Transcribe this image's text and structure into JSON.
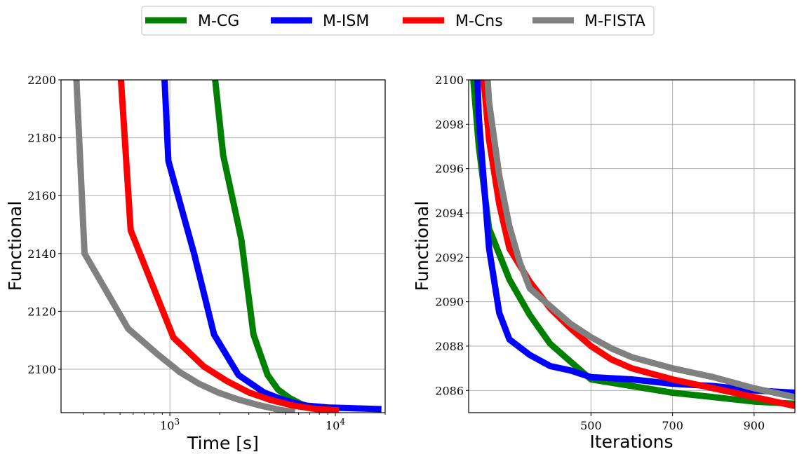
{
  "legend": {
    "placement": "top-center",
    "entries": [
      {
        "name": "M-CG",
        "color": "#008000"
      },
      {
        "name": "M-ISM",
        "color": "#0000ff"
      },
      {
        "name": "M-Cns",
        "color": "#ff0000"
      },
      {
        "name": "M-FISTA",
        "color": "#808080"
      }
    ]
  },
  "chart_data": [
    {
      "type": "line",
      "xlabel": "Time [s]",
      "ylabel": "Functional",
      "xscale": "log",
      "xlim": [
        220,
        20000
      ],
      "ylim": [
        2085,
        2200
      ],
      "xticks": [
        {
          "value": 1000,
          "label": "10^3"
        },
        {
          "value": 10000,
          "label": "10^4"
        }
      ],
      "yticks": [
        2100,
        2120,
        2140,
        2160,
        2180,
        2200
      ],
      "grid": true,
      "series": [
        {
          "name": "M-CG",
          "color": "#008000",
          "x": [
            1800,
            2100,
            2700,
            3200,
            3900,
            4500,
            5300,
            6200,
            7500,
            9000
          ],
          "y": [
            2210,
            2174,
            2145,
            2112,
            2098,
            2093,
            2090,
            2088,
            2086.5,
            2086
          ]
        },
        {
          "name": "M-ISM",
          "color": "#0000ff",
          "x": [
            920,
            980,
            1400,
            1850,
            2600,
            3700,
            4800,
            6500,
            9000,
            13000,
            19000
          ],
          "y": [
            2205,
            2172,
            2140,
            2112,
            2098,
            2092,
            2089.5,
            2087.5,
            2086.8,
            2086.5,
            2086.2
          ]
        },
        {
          "name": "M-Cns",
          "color": "#ff0000",
          "x": [
            500,
            580,
            1050,
            1600,
            2200,
            3000,
            4000,
            5500,
            7500,
            10500
          ],
          "y": [
            2205,
            2148,
            2111,
            2101,
            2096,
            2092,
            2089.5,
            2087.5,
            2086.3,
            2085.8
          ]
        },
        {
          "name": "M-FISTA",
          "color": "#808080",
          "x": [
            270,
            305,
            560,
            850,
            1150,
            1500,
            1950,
            2600,
            3500,
            4600,
            5700
          ],
          "y": [
            2205,
            2140,
            2114,
            2105,
            2099,
            2095,
            2092,
            2089.5,
            2087.5,
            2086,
            2085.2
          ]
        }
      ]
    },
    {
      "type": "line",
      "xlabel": "Iterations",
      "ylabel": "Functional",
      "xlim": [
        200,
        1000
      ],
      "ylim": [
        2085,
        2100
      ],
      "xticks": [
        500,
        700,
        900
      ],
      "yticks": [
        2086,
        2088,
        2090,
        2092,
        2094,
        2096,
        2098,
        2100
      ],
      "grid": true,
      "series": [
        {
          "name": "M-CG",
          "color": "#008000",
          "x": [
            207,
            225,
            250,
            300,
            350,
            400,
            450,
            500,
            600,
            700,
            800,
            900,
            1000
          ],
          "y": [
            2101,
            2097,
            2093.3,
            2091,
            2089.4,
            2088.1,
            2087.3,
            2086.5,
            2086.2,
            2085.9,
            2085.7,
            2085.5,
            2085.4
          ]
        },
        {
          "name": "M-ISM",
          "color": "#0000ff",
          "x": [
            220,
            225,
            250,
            275,
            300,
            350,
            400,
            450,
            500,
            600,
            700,
            800,
            900,
            1000
          ],
          "y": [
            2101,
            2098.3,
            2092.4,
            2089.5,
            2088.3,
            2087.6,
            2087.1,
            2086.9,
            2086.6,
            2086.5,
            2086.3,
            2086.2,
            2086.0,
            2085.9
          ]
        },
        {
          "name": "M-Cns",
          "color": "#ff0000",
          "x": [
            232,
            250,
            275,
            300,
            350,
            400,
            450,
            500,
            550,
            600,
            700,
            800,
            900,
            1000
          ],
          "y": [
            2101,
            2097.3,
            2094.4,
            2092.4,
            2090.9,
            2089.7,
            2088.8,
            2088.0,
            2087.4,
            2087.0,
            2086.5,
            2086.1,
            2085.7,
            2085.3
          ]
        },
        {
          "name": "M-FISTA",
          "color": "#808080",
          "x": [
            243,
            250,
            275,
            300,
            325,
            350,
            400,
            450,
            500,
            550,
            600,
            700,
            800,
            900,
            1000
          ],
          "y": [
            2101,
            2099.0,
            2095.7,
            2093.4,
            2091.8,
            2090.6,
            2089.8,
            2089.0,
            2088.4,
            2087.9,
            2087.5,
            2087.0,
            2086.6,
            2086.1,
            2085.7
          ]
        }
      ]
    }
  ]
}
